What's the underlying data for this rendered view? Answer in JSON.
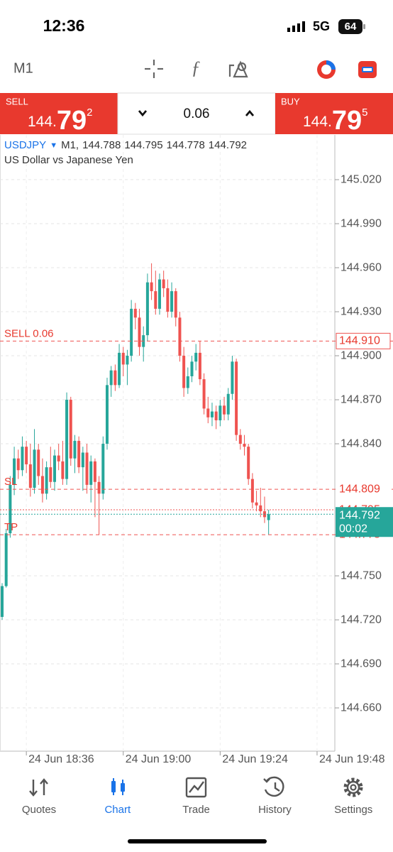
{
  "status_bar": {
    "time": "12:36",
    "network": "5G",
    "battery": "64"
  },
  "toolbar": {
    "timeframe": "M1"
  },
  "trade_panel": {
    "sell": {
      "label": "SELL",
      "price_prefix": "144.",
      "price_big": "79",
      "price_pip": "2"
    },
    "volume": "0.06",
    "buy": {
      "label": "BUY",
      "price_prefix": "144.",
      "price_big": "79",
      "price_pip": "5"
    }
  },
  "chart": {
    "type": "candlestick",
    "symbol": "USDJPY",
    "timeframe_label": "M1,",
    "description": "US Dollar vs Japanese Yen",
    "up_color": "#26a69a",
    "down_color": "#ef5350",
    "ylim": [
      144.6305,
      145.0505
    ],
    "yticks": [
      {
        "value": 145.02,
        "label": "145.020"
      },
      {
        "value": 144.99,
        "label": "144.990"
      },
      {
        "value": 144.96,
        "label": "144.960"
      },
      {
        "value": 144.93,
        "label": "144.930"
      },
      {
        "value": 144.9,
        "label": "144.900"
      },
      {
        "value": 144.87,
        "label": "144.870"
      },
      {
        "value": 144.84,
        "label": "144.840"
      },
      {
        "value": 144.75,
        "label": "144.750"
      },
      {
        "value": 144.72,
        "label": "144.720"
      },
      {
        "value": 144.69,
        "label": "144.690"
      },
      {
        "value": 144.66,
        "label": "144.660"
      }
    ],
    "xlim": [
      -0.527,
      82.4
    ],
    "xticks": [
      {
        "value": 6,
        "label": "24 Jun 18:36"
      },
      {
        "value": 30,
        "label": "24 Jun 19:00"
      },
      {
        "value": 54,
        "label": "24 Jun 19:24"
      },
      {
        "value": 78,
        "label": "24 Jun 19:48"
      }
    ],
    "levels": [
      {
        "text": "SELL 0.06",
        "value": 144.91,
        "label": "144.910"
      },
      {
        "text": "SL",
        "value": 144.809,
        "label": "144.809"
      },
      {
        "text": "TP",
        "value": 144.778,
        "label": "144.778"
      }
    ],
    "ask": {
      "value": 144.795,
      "label": "144.795"
    },
    "bid": {
      "value": 144.792,
      "label": "144.792",
      "timer": "00:02"
    },
    "candles": [
      [
        144.722,
        144.745,
        144.72,
        144.743
      ],
      [
        144.743,
        144.782,
        144.742,
        144.779
      ],
      [
        144.779,
        144.818,
        144.776,
        144.812
      ],
      [
        144.812,
        144.838,
        144.805,
        144.83
      ],
      [
        144.83,
        144.836,
        144.816,
        144.822
      ],
      [
        144.822,
        144.845,
        144.818,
        144.838
      ],
      [
        144.838,
        144.842,
        144.82,
        144.826
      ],
      [
        144.826,
        144.84,
        144.804,
        144.81
      ],
      [
        144.81,
        144.85,
        144.806,
        144.836
      ],
      [
        144.836,
        144.84,
        144.812,
        144.818
      ],
      [
        144.818,
        144.83,
        144.8,
        144.806
      ],
      [
        144.806,
        144.828,
        144.802,
        144.824
      ],
      [
        144.824,
        144.838,
        144.81,
        144.814
      ],
      [
        144.814,
        144.836,
        144.808,
        144.832
      ],
      [
        144.832,
        144.84,
        144.822,
        144.828
      ],
      [
        144.828,
        144.842,
        144.812,
        144.816
      ],
      [
        144.816,
        144.875,
        144.812,
        144.87
      ],
      [
        144.87,
        144.872,
        144.825,
        144.83
      ],
      [
        144.83,
        144.846,
        144.82,
        144.842
      ],
      [
        144.842,
        144.845,
        144.82,
        144.824
      ],
      [
        144.824,
        144.838,
        144.808,
        144.834
      ],
      [
        144.834,
        144.84,
        144.806,
        144.812
      ],
      [
        144.812,
        144.832,
        144.8,
        144.828
      ],
      [
        144.828,
        144.83,
        144.79,
        144.814
      ],
      [
        144.814,
        144.818,
        144.778,
        144.806
      ],
      [
        144.806,
        144.845,
        144.802,
        144.84
      ],
      [
        144.84,
        144.885,
        144.836,
        144.88
      ],
      [
        144.88,
        144.893,
        144.872,
        144.89
      ],
      [
        144.89,
        144.894,
        144.876,
        144.88
      ],
      [
        144.88,
        144.908,
        144.878,
        144.902
      ],
      [
        144.902,
        144.906,
        144.886,
        144.894
      ],
      [
        144.894,
        144.904,
        144.88,
        144.9
      ],
      [
        144.9,
        144.938,
        144.896,
        144.932
      ],
      [
        144.932,
        144.936,
        144.918,
        144.926
      ],
      [
        144.926,
        144.932,
        144.9,
        144.906
      ],
      [
        144.906,
        144.92,
        144.896,
        144.914
      ],
      [
        144.914,
        144.956,
        144.91,
        144.95
      ],
      [
        144.95,
        144.963,
        144.938,
        144.944
      ],
      [
        144.944,
        144.958,
        144.928,
        144.932
      ],
      [
        144.932,
        144.956,
        144.928,
        144.952
      ],
      [
        144.952,
        144.958,
        144.94,
        144.946
      ],
      [
        144.946,
        144.952,
        144.926,
        144.93
      ],
      [
        144.93,
        144.95,
        144.926,
        144.944
      ],
      [
        144.944,
        144.946,
        144.92,
        144.926
      ],
      [
        144.926,
        144.93,
        144.896,
        144.9
      ],
      [
        144.9,
        144.906,
        144.872,
        144.878
      ],
      [
        144.878,
        144.892,
        144.874,
        144.886
      ],
      [
        144.886,
        144.9,
        144.882,
        144.896
      ],
      [
        144.896,
        144.908,
        144.89,
        144.902
      ],
      [
        144.902,
        144.91,
        144.88,
        144.884
      ],
      [
        144.884,
        144.888,
        144.86,
        144.864
      ],
      [
        144.864,
        144.872,
        144.854,
        144.858
      ],
      [
        144.858,
        144.868,
        144.852,
        144.862
      ],
      [
        144.862,
        144.866,
        144.85,
        144.856
      ],
      [
        144.856,
        144.87,
        144.852,
        144.866
      ],
      [
        144.866,
        144.872,
        144.856,
        144.86
      ],
      [
        144.86,
        144.878,
        144.856,
        144.874
      ],
      [
        144.874,
        144.9,
        144.87,
        144.896
      ],
      [
        144.896,
        144.898,
        144.842,
        144.846
      ],
      [
        144.846,
        144.85,
        144.836,
        144.84
      ],
      [
        144.84,
        144.846,
        144.832,
        144.838
      ],
      [
        144.838,
        144.84,
        144.812,
        144.816
      ],
      [
        144.816,
        144.82,
        144.796,
        144.8
      ],
      [
        144.8,
        144.808,
        144.794,
        144.798
      ],
      [
        144.798,
        144.81,
        144.79,
        144.794
      ],
      [
        144.794,
        144.804,
        144.786,
        144.79
      ],
      [
        144.788,
        144.795,
        144.778,
        144.792
      ]
    ]
  },
  "tab_bar": {
    "tabs": [
      "Quotes",
      "Chart",
      "Trade",
      "History",
      "Settings"
    ],
    "active": 1
  }
}
